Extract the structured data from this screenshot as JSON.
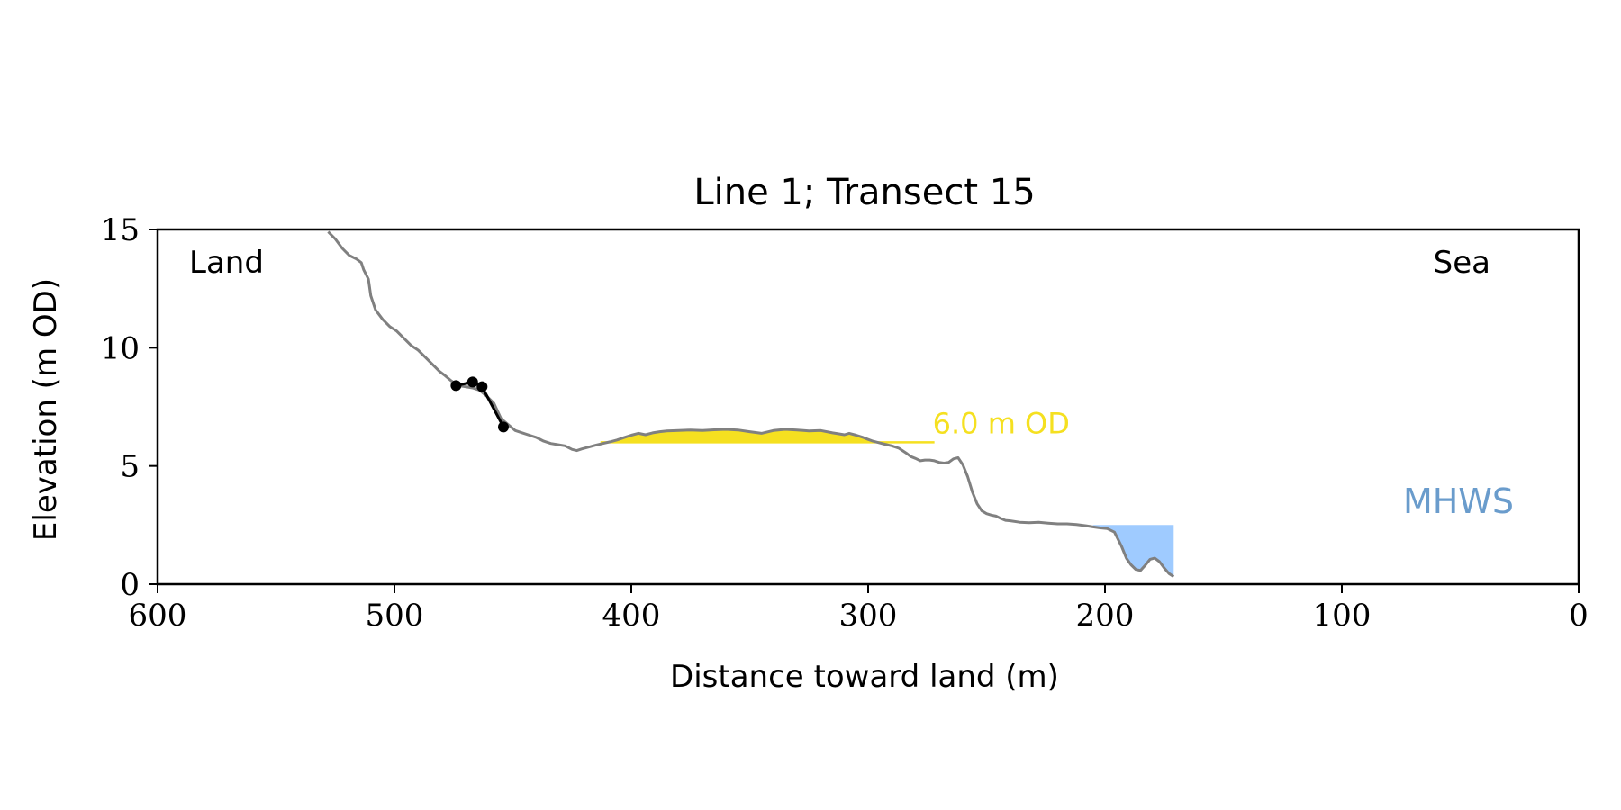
{
  "chart_data": {
    "type": "line",
    "title": "Line 1; Transect 15",
    "xlabel": "Distance toward land (m)",
    "ylabel": "Elevation (m OD)",
    "xlim": [
      600,
      0
    ],
    "ylim": [
      0,
      15
    ],
    "xticks": [
      600,
      500,
      400,
      300,
      200,
      100,
      0
    ],
    "yticks": [
      0,
      5,
      10,
      15
    ],
    "grid": false,
    "annotations": {
      "land": "Land",
      "sea": "Sea",
      "level_label": "6.0 m OD",
      "mhws_label": "MHWS"
    },
    "colors": {
      "profile": "#808080",
      "level": "#f5e020",
      "mhws": "#9fcbff",
      "mhws_text": "#6a9ccc",
      "feature": "#000000",
      "feature_fill": "#cccccc"
    },
    "level_elevation": 6.0,
    "mhws_elevation": 2.5,
    "level_fill_x": [
      413,
      290
    ],
    "level_line_x": [
      413,
      272
    ],
    "mhws_fill_x": [
      205,
      171
    ],
    "series": [
      {
        "x": [
          528,
          525,
          522,
          519,
          516,
          514,
          513,
          511,
          510,
          508,
          505,
          502,
          499,
          496,
          493,
          490,
          487,
          484,
          481,
          479,
          476,
          473,
          470,
          467,
          464,
          461,
          458,
          455,
          452,
          449,
          446,
          443,
          440,
          437,
          434,
          431,
          428,
          425,
          423,
          421,
          418,
          415,
          412,
          409,
          406,
          403,
          400,
          397,
          394,
          391,
          388,
          385,
          380,
          375,
          370,
          365,
          360,
          355,
          350,
          345,
          340,
          335,
          330,
          325,
          320,
          315,
          310,
          308,
          305,
          302,
          300,
          298,
          296,
          293,
          290,
          287,
          284,
          282,
          280,
          278,
          276,
          274,
          272,
          270,
          268,
          266,
          264,
          262,
          260,
          258,
          256,
          254,
          252,
          250,
          248,
          246,
          244,
          242,
          240,
          236,
          232,
          228,
          224,
          220,
          216,
          212,
          208,
          205,
          202,
          199,
          196,
          193,
          191,
          189,
          187,
          185,
          183,
          181,
          179,
          177,
          175,
          173,
          171
        ],
        "y": [
          14.9,
          14.6,
          14.2,
          13.9,
          13.75,
          13.6,
          13.3,
          12.9,
          12.2,
          11.6,
          11.2,
          10.9,
          10.7,
          10.4,
          10.1,
          9.9,
          9.6,
          9.3,
          9.0,
          8.85,
          8.6,
          8.4,
          8.35,
          8.3,
          8.2,
          7.95,
          7.65,
          7.0,
          6.75,
          6.5,
          6.4,
          6.3,
          6.2,
          6.05,
          5.95,
          5.9,
          5.85,
          5.7,
          5.65,
          5.72,
          5.8,
          5.88,
          5.95,
          6.02,
          6.1,
          6.2,
          6.3,
          6.38,
          6.32,
          6.4,
          6.45,
          6.48,
          6.5,
          6.52,
          6.5,
          6.53,
          6.55,
          6.52,
          6.45,
          6.38,
          6.5,
          6.55,
          6.52,
          6.48,
          6.5,
          6.4,
          6.32,
          6.38,
          6.3,
          6.2,
          6.12,
          6.05,
          6.0,
          5.92,
          5.85,
          5.75,
          5.55,
          5.4,
          5.32,
          5.22,
          5.25,
          5.25,
          5.22,
          5.15,
          5.12,
          5.15,
          5.3,
          5.35,
          5.05,
          4.55,
          3.9,
          3.4,
          3.1,
          2.98,
          2.92,
          2.88,
          2.78,
          2.7,
          2.68,
          2.62,
          2.6,
          2.62,
          2.58,
          2.55,
          2.55,
          2.52,
          2.47,
          2.42,
          2.38,
          2.35,
          2.2,
          1.6,
          1.1,
          0.82,
          0.62,
          0.58,
          0.8,
          1.05,
          1.1,
          0.95,
          0.68,
          0.45,
          0.32
        ]
      }
    ],
    "feature": {
      "x": [
        474,
        467,
        463,
        454
      ],
      "y": [
        8.4,
        8.55,
        8.35,
        6.65
      ]
    }
  }
}
